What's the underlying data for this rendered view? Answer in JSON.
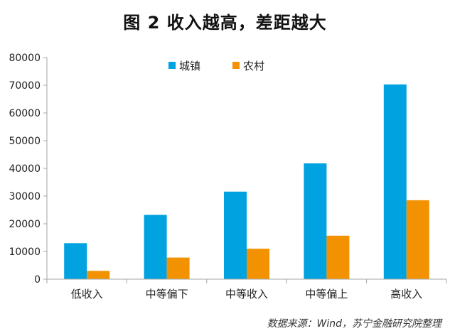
{
  "header": {
    "title": "图 2  收入越高，差距越大"
  },
  "footer": {
    "source": "数据来源：Wind，苏宁金融研究院整理"
  },
  "colors": {
    "urban": "#00A2E0",
    "rural": "#F39200",
    "axis": "#A6A6A6"
  },
  "chart_data": {
    "type": "bar",
    "title": "图 2  收入越高，差距越大",
    "categories": [
      "低收入",
      "中等偏下",
      "中等收入",
      "中等偏上",
      "高收入"
    ],
    "series": [
      {
        "name": "城镇",
        "values": [
          13000,
          23200,
          31600,
          41800,
          70300
        ]
      },
      {
        "name": "农村",
        "values": [
          3000,
          7800,
          11000,
          15700,
          28500
        ]
      }
    ],
    "y_ticks": [
      "0",
      "10000",
      "20000",
      "30000",
      "40000",
      "50000",
      "60000",
      "70000",
      "80000"
    ],
    "ylim": [
      0,
      80000
    ],
    "xlabel": "",
    "ylabel": "",
    "grid": false,
    "legend_position": "top-center"
  }
}
